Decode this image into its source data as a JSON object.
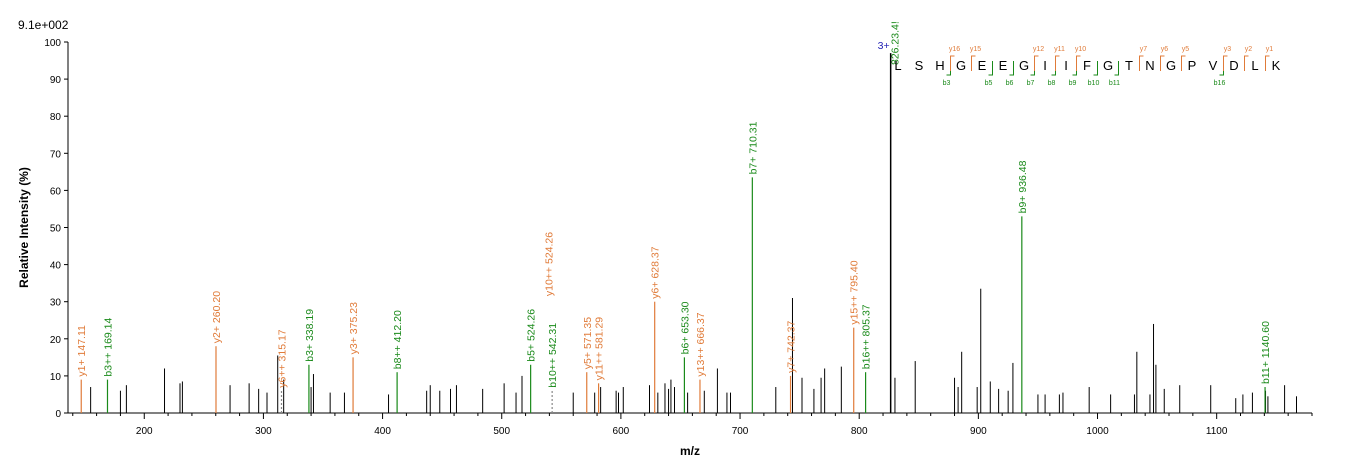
{
  "colors": {
    "b": "#1a8a1a",
    "y": "#e07b39",
    "unassigned": "#000000",
    "precursor": "#1f1fb4"
  },
  "chart_data": {
    "type": "bar",
    "title": "",
    "max_intensity_label": "9.1e+002",
    "xlabel": "m/z",
    "ylabel": "Relative   Intensity (%)",
    "xlim": [
      136,
      1180
    ],
    "ylim": [
      0,
      100
    ],
    "x_ticks": [
      200,
      300,
      400,
      500,
      600,
      700,
      800,
      900,
      1000,
      1100
    ],
    "y_ticks": [
      0,
      10,
      20,
      30,
      40,
      50,
      60,
      70,
      80,
      90,
      100
    ],
    "annotated_peaks": [
      {
        "mz": 147.11,
        "intensity": 9,
        "ion": "y",
        "label": "y1+ 147.11"
      },
      {
        "mz": 169.14,
        "intensity": 9,
        "ion": "b",
        "label": "b3++ 169.14"
      },
      {
        "mz": 260.2,
        "intensity": 18,
        "ion": "y",
        "label": "y2+ 260.20"
      },
      {
        "mz": 315.17,
        "intensity": 6,
        "ion": "y",
        "label": "y6++ 315.17"
      },
      {
        "mz": 338.19,
        "intensity": 13,
        "ion": "b",
        "label": "b3+ 338.19"
      },
      {
        "mz": 375.23,
        "intensity": 15,
        "ion": "y",
        "label": "y3+ 375.23"
      },
      {
        "mz": 412.2,
        "intensity": 11,
        "ion": "b",
        "label": "b8++ 412.20"
      },
      {
        "mz": 524.26,
        "intensity": 13,
        "ion": "y",
        "label": "y10++ 524.26"
      },
      {
        "mz": 524.26,
        "intensity": 13,
        "ion": "b",
        "label": "b5+ 524.26"
      },
      {
        "mz": 542.31,
        "intensity": 6,
        "ion": "b",
        "label": "b10++ 542.31"
      },
      {
        "mz": 571.35,
        "intensity": 11,
        "ion": "y",
        "label": "y5+ 571.35"
      },
      {
        "mz": 581.29,
        "intensity": 8,
        "ion": "y",
        "label": "y11++ 581.29"
      },
      {
        "mz": 628.37,
        "intensity": 30,
        "ion": "y",
        "label": "y6+ 628.37"
      },
      {
        "mz": 653.3,
        "intensity": 15,
        "ion": "b",
        "label": "b6+ 653.30"
      },
      {
        "mz": 666.37,
        "intensity": 9,
        "ion": "y",
        "label": "y13++ 666.37"
      },
      {
        "mz": 710.31,
        "intensity": 63.5,
        "ion": "b",
        "label": "b7+ 710.31"
      },
      {
        "mz": 742.37,
        "intensity": 10,
        "ion": "y",
        "label": "y7+ 742.37"
      },
      {
        "mz": 795.4,
        "intensity": 23,
        "ion": "y",
        "label": "y15++ 795.40"
      },
      {
        "mz": 805.37,
        "intensity": 11,
        "ion": "b",
        "label": "b16++ 805.37"
      },
      {
        "mz": 936.48,
        "intensity": 53,
        "ion": "b",
        "label": "b9+ 936.48"
      },
      {
        "mz": 1140.6,
        "intensity": 7,
        "ion": "b",
        "label": "b11+ 1140.60"
      }
    ],
    "precursor_peak": {
      "mz": 826.4,
      "intensity": 97,
      "label_main": "826.23.4!",
      "label_charge": "3+"
    },
    "unassigned_peaks": [
      [
        155,
        7
      ],
      [
        180,
        6
      ],
      [
        185,
        7.5
      ],
      [
        217,
        12
      ],
      [
        230,
        8
      ],
      [
        232,
        8.5
      ],
      [
        272,
        7.5
      ],
      [
        288,
        8
      ],
      [
        296,
        6.5
      ],
      [
        303,
        5.5
      ],
      [
        312,
        15.5
      ],
      [
        317,
        9
      ],
      [
        340,
        7
      ],
      [
        342,
        10.5
      ],
      [
        356,
        5.5
      ],
      [
        368,
        5.5
      ],
      [
        405,
        5
      ],
      [
        437,
        6
      ],
      [
        440,
        7.5
      ],
      [
        448,
        6
      ],
      [
        457,
        6.5
      ],
      [
        462,
        7.5
      ],
      [
        484,
        6.5
      ],
      [
        502,
        8
      ],
      [
        512,
        5.5
      ],
      [
        517,
        10
      ],
      [
        560,
        5.5
      ],
      [
        578,
        5.5
      ],
      [
        583,
        7
      ],
      [
        596,
        6
      ],
      [
        598,
        5.5
      ],
      [
        602,
        7
      ],
      [
        624,
        7.5
      ],
      [
        631,
        5.5
      ],
      [
        637,
        8
      ],
      [
        640,
        6.5
      ],
      [
        642,
        9
      ],
      [
        645,
        7
      ],
      [
        656,
        5.5
      ],
      [
        670,
        6
      ],
      [
        681,
        12
      ],
      [
        689,
        5.5
      ],
      [
        692,
        5.5
      ],
      [
        730,
        7
      ],
      [
        744,
        31
      ],
      [
        752,
        9.5
      ],
      [
        762,
        6.5
      ],
      [
        768,
        9.5
      ],
      [
        771,
        12
      ],
      [
        785,
        12.5
      ],
      [
        830,
        9.5
      ],
      [
        847,
        14
      ],
      [
        880,
        9.5
      ],
      [
        883,
        7
      ],
      [
        886,
        16.5
      ],
      [
        899,
        7
      ],
      [
        902,
        33.5
      ],
      [
        910,
        8.5
      ],
      [
        917,
        6.5
      ],
      [
        925,
        6
      ],
      [
        929,
        13.5
      ],
      [
        950,
        5
      ],
      [
        956,
        5
      ],
      [
        968,
        5
      ],
      [
        971,
        5.5
      ],
      [
        993,
        7
      ],
      [
        1011,
        5
      ],
      [
        1031,
        5
      ],
      [
        1033,
        16.5
      ],
      [
        1044,
        5
      ],
      [
        1047,
        24
      ],
      [
        1049,
        13
      ],
      [
        1056,
        6.5
      ],
      [
        1069,
        7.5
      ],
      [
        1095,
        7.5
      ],
      [
        1116,
        4
      ],
      [
        1122,
        5
      ],
      [
        1130,
        5.5
      ],
      [
        1141,
        6
      ],
      [
        1143,
        4.5
      ],
      [
        1157,
        7.5
      ],
      [
        1167,
        4.5
      ]
    ],
    "sequence": {
      "residues": [
        "L",
        "S",
        "H",
        "G",
        "E",
        "E",
        "G",
        "I",
        "I",
        "F",
        "G",
        "T",
        "N",
        "G",
        "P",
        "V",
        "D",
        "L",
        "K"
      ],
      "b_markers": [
        {
          "after": 3,
          "label": "b3"
        },
        {
          "after": 5,
          "label": "b5"
        },
        {
          "after": 6,
          "label": "b6"
        },
        {
          "after": 7,
          "label": "b7"
        },
        {
          "after": 8,
          "label": "b8"
        },
        {
          "after": 9,
          "label": "b9"
        },
        {
          "after": 10,
          "label": "b10"
        },
        {
          "after": 11,
          "label": "b11"
        },
        {
          "after": 16,
          "label": "b16"
        }
      ],
      "y_markers": [
        {
          "before": 3,
          "label": "y16"
        },
        {
          "before": 4,
          "label": "y15"
        },
        {
          "before": 7,
          "label": "y12"
        },
        {
          "before": 8,
          "label": "y11"
        },
        {
          "before": 9,
          "label": "y10"
        },
        {
          "before": 12,
          "label": "y7"
        },
        {
          "before": 13,
          "label": "y6"
        },
        {
          "before": 14,
          "label": "y5"
        },
        {
          "before": 16,
          "label": "y3"
        },
        {
          "before": 17,
          "label": "y2"
        },
        {
          "before": 18,
          "label": "y1"
        }
      ]
    }
  }
}
